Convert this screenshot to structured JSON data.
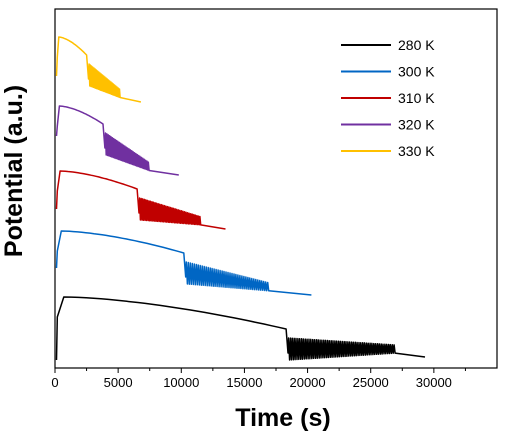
{
  "chart_data": {
    "type": "line",
    "xlabel": "Time (s)",
    "ylabel": "Potential (a.u.)",
    "xlim": [
      0,
      35000
    ],
    "x_ticks": [
      0,
      5000,
      10000,
      15000,
      20000,
      25000,
      30000
    ],
    "x_tick_labels": [
      "0",
      "5000",
      "10000",
      "15000",
      "20000",
      "25000",
      "30000"
    ],
    "y_ticks_shown": false,
    "legend_position": "top-right",
    "series": [
      {
        "name": "280 K",
        "color": "#000000",
        "offset": 0,
        "t_peak": 700,
        "t_end_smooth": 18300,
        "t_osc_end": 27000,
        "t_end": 29300,
        "osc_n": 58
      },
      {
        "name": "300 K",
        "color": "#0066c4",
        "offset": 1,
        "t_peak": 500,
        "t_end_smooth": 10200,
        "t_osc_end": 17000,
        "t_end": 20300,
        "osc_n": 42
      },
      {
        "name": "310 K",
        "color": "#c00000",
        "offset": 2,
        "t_peak": 400,
        "t_end_smooth": 6500,
        "t_osc_end": 11600,
        "t_end": 13500,
        "osc_n": 40
      },
      {
        "name": "320 K",
        "color": "#7030a0",
        "offset": 3,
        "t_peak": 350,
        "t_end_smooth": 3800,
        "t_osc_end": 7500,
        "t_end": 9800,
        "osc_n": 32
      },
      {
        "name": "330 K",
        "color": "#ffc000",
        "offset": 4,
        "t_peak": 300,
        "t_end_smooth": 2500,
        "t_osc_end": 5200,
        "t_end": 6800,
        "osc_n": 26
      }
    ]
  }
}
